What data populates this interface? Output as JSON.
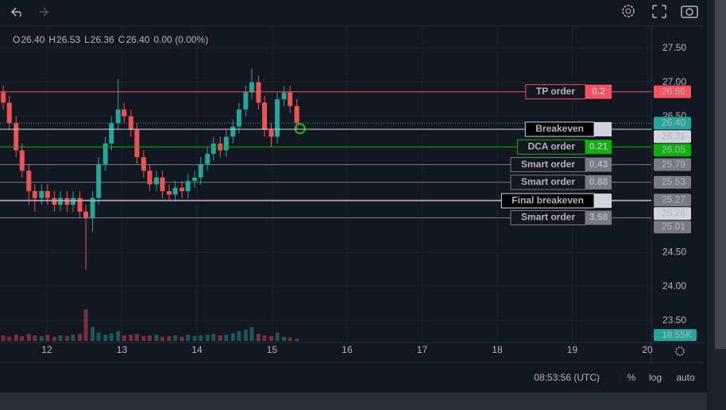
{
  "ui": {
    "ohlc": [
      {
        "key": "O",
        "value": "26.40"
      },
      {
        "key": "H",
        "value": "26.53"
      },
      {
        "key": "L",
        "value": "26.36"
      },
      {
        "key": "C",
        "value": "26.40"
      }
    ],
    "change": "0.00 (0.00%)",
    "volume_tag": "18.55K",
    "time": "08:53:56 (UTC)",
    "buttons": [
      "%",
      "log",
      "auto"
    ]
  },
  "chart_data": {
    "type": "candlestick",
    "x": [
      11.42,
      11.5,
      11.59,
      11.67,
      11.76,
      11.84,
      11.93,
      12.01,
      12.1,
      12.18,
      12.27,
      12.35,
      12.44,
      12.52,
      12.61,
      12.69,
      12.78,
      12.86,
      12.95,
      13.03,
      13.12,
      13.2,
      13.29,
      13.37,
      13.46,
      13.54,
      13.63,
      13.71,
      13.8,
      13.88,
      13.97,
      14.05,
      14.14,
      14.22,
      14.31,
      14.39,
      14.48,
      14.56,
      14.65,
      14.73,
      14.82,
      14.9,
      14.99,
      15.07,
      15.16,
      15.24,
      15.33
    ],
    "open": [
      26.85,
      26.7,
      26.4,
      26.0,
      25.7,
      25.4,
      25.3,
      25.4,
      25.3,
      25.2,
      25.3,
      25.2,
      25.3,
      25.1,
      25.0,
      25.3,
      25.8,
      26.1,
      26.4,
      26.6,
      26.5,
      26.3,
      25.9,
      25.7,
      25.5,
      25.6,
      25.4,
      25.35,
      25.45,
      25.4,
      25.55,
      25.6,
      25.8,
      25.95,
      26.1,
      26.0,
      26.2,
      26.35,
      26.6,
      26.85,
      27.0,
      26.7,
      26.3,
      26.2,
      26.75,
      26.85,
      26.65
    ],
    "high": [
      26.95,
      26.8,
      26.5,
      26.1,
      25.8,
      25.5,
      25.5,
      25.5,
      25.4,
      25.4,
      25.4,
      25.4,
      25.4,
      25.2,
      25.4,
      25.9,
      26.2,
      26.5,
      27.05,
      26.7,
      26.6,
      26.4,
      26.0,
      25.8,
      25.7,
      25.7,
      25.5,
      25.55,
      25.55,
      25.65,
      25.7,
      25.9,
      26.05,
      26.2,
      26.2,
      26.3,
      26.45,
      26.7,
      26.95,
      27.2,
      27.1,
      26.8,
      26.4,
      26.85,
      26.95,
      26.95,
      26.75
    ],
    "low": [
      26.6,
      26.3,
      25.9,
      25.6,
      25.2,
      25.1,
      25.2,
      25.2,
      25.1,
      25.1,
      25.1,
      25.1,
      25.0,
      24.25,
      24.8,
      25.2,
      25.7,
      26.0,
      26.3,
      26.4,
      26.2,
      25.8,
      25.6,
      25.4,
      25.4,
      25.3,
      25.25,
      25.25,
      25.3,
      25.3,
      25.45,
      25.5,
      25.7,
      25.85,
      25.9,
      25.9,
      26.1,
      26.25,
      26.5,
      26.75,
      26.6,
      26.2,
      26.05,
      26.1,
      26.65,
      26.55,
      26.3
    ],
    "close": [
      26.7,
      26.4,
      26.0,
      25.7,
      25.4,
      25.3,
      25.4,
      25.3,
      25.2,
      25.3,
      25.2,
      25.3,
      25.1,
      25.0,
      25.3,
      25.8,
      26.1,
      26.4,
      26.6,
      26.5,
      26.3,
      25.9,
      25.7,
      25.5,
      25.6,
      25.4,
      25.35,
      25.45,
      25.4,
      25.55,
      25.6,
      25.8,
      25.95,
      26.1,
      26.0,
      26.2,
      26.35,
      26.6,
      26.85,
      27.0,
      26.7,
      26.3,
      26.2,
      26.75,
      26.85,
      26.65,
      26.4
    ],
    "volume": [
      8,
      6,
      9,
      7,
      10,
      8,
      7,
      9,
      6,
      8,
      7,
      9,
      10,
      45,
      20,
      12,
      9,
      11,
      14,
      8,
      9,
      10,
      7,
      8,
      9,
      6,
      7,
      8,
      6,
      9,
      7,
      8,
      9,
      10,
      8,
      9,
      11,
      14,
      16,
      20,
      10,
      8,
      7,
      12,
      6,
      5,
      3
    ],
    "up_color": "#26a69a",
    "down_color": "#ef5350",
    "xlim": [
      11.376,
      20.053
    ],
    "ylim": [
      23.2,
      27.8
    ],
    "xticks": [
      12,
      13,
      14,
      15,
      16,
      17,
      18,
      19,
      20
    ],
    "yticks": [
      {
        "value": 27.5,
        "label": "27.50"
      },
      {
        "value": 27,
        "label": "27.00"
      },
      {
        "value": 26.5,
        "label": "26.50"
      },
      {
        "value": 24.5,
        "label": "24.50"
      },
      {
        "value": 24,
        "label": "24.00"
      },
      {
        "value": 23.5,
        "label": "23.50"
      }
    ],
    "grid": true,
    "last_price": {
      "value": 26.4,
      "label": "26.40",
      "color": "#26a69a"
    },
    "orders": [
      {
        "label": "TP order",
        "qty": 0.2,
        "price": {
          "value": 26.86,
          "label": "26.86"
        },
        "color": "#f7525f"
      },
      {
        "label": "Breakeven",
        "price": {
          "value": 26.31,
          "label": "26.31"
        },
        "color": "#d1d4dc"
      },
      {
        "label": "DCA order",
        "qty": 0.21,
        "price": {
          "value": 26.05,
          "label": "26.05"
        },
        "color": "#0ab20a"
      },
      {
        "label": "Smart order",
        "qty": 0.43,
        "price": {
          "value": 25.79,
          "label": "25.79"
        },
        "color": "#787b86"
      },
      {
        "label": "Smart order",
        "qty": 0.88,
        "price": {
          "value": 25.53,
          "label": "25.53"
        },
        "color": "#787b86"
      },
      {
        "price": {
          "value": 25.27,
          "label": "25.27"
        },
        "color": "#787b86"
      },
      {
        "label": "Final breakeven",
        "price": {
          "value": 25.26,
          "label": "25.26"
        },
        "color": "#d1d4dc"
      },
      {
        "label": "Smart order",
        "qty": 3.58,
        "price": {
          "value": 25.01,
          "label": "25.01"
        },
        "color": "#787b86"
      }
    ]
  }
}
